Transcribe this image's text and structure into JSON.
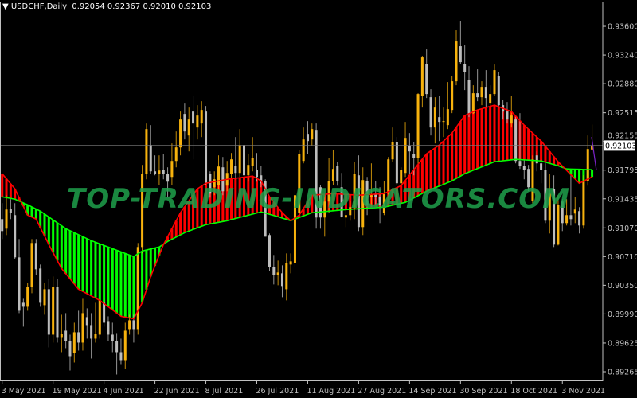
{
  "header": {
    "menu_icon": "triangle-down-icon",
    "symbol": "USDCHF,Daily",
    "open": "0.92054",
    "high": "0.92367",
    "low": "0.92010",
    "close": "0.92103"
  },
  "watermark": "TOP-TRADING-INDICATORS.COM",
  "current_price_label": "0.92103",
  "colors": {
    "background": "#000000",
    "bull": "#f7b20d",
    "bear": "#bdbdbd",
    "fast_line": "#ff0000",
    "slow_line": "#00ff00",
    "fill_up": "#ff0000",
    "fill_down": "#00ff00",
    "watermark": "#1fa04c",
    "axis": "#c0c0c0",
    "price_line": "#7f7f7f",
    "extra_line": "#7a22c8"
  },
  "chart_data": {
    "type": "candlestick",
    "symbol": "USDCHF",
    "timeframe": "Daily",
    "ylim": [
      0.89155,
      0.9391
    ],
    "grid": false,
    "y_ticks": [
      "0.93600",
      "0.93240",
      "0.92880",
      "0.92515",
      "0.92155",
      "0.91795",
      "0.91435",
      "0.91070",
      "0.90710",
      "0.90350",
      "0.89990",
      "0.89625",
      "0.89265"
    ],
    "x_tick_labels": [
      "3 May 2021",
      "19 May 2021",
      "4 Jun 2021",
      "22 Jun 2021",
      "8 Jul 2021",
      "26 Jul 2021",
      "11 Aug 2021",
      "27 Aug 2021",
      "14 Sep 2021",
      "30 Sep 2021",
      "18 Oct 2021",
      "3 Nov 2021"
    ],
    "candles_ohlc": [
      [
        0.9118,
        0.9138,
        0.9093,
        0.9103
      ],
      [
        0.9106,
        0.9148,
        0.9098,
        0.913
      ],
      [
        0.9131,
        0.9143,
        0.9118,
        0.9126
      ],
      [
        0.9123,
        0.9138,
        0.9068,
        0.907
      ],
      [
        0.907,
        0.9093,
        0.9,
        0.9003
      ],
      [
        0.9013,
        0.9018,
        0.8983,
        0.9008
      ],
      [
        0.9008,
        0.9038,
        0.9003,
        0.9033
      ],
      [
        0.9033,
        0.9093,
        0.9025,
        0.9088
      ],
      [
        0.9088,
        0.9093,
        0.9048,
        0.9055
      ],
      [
        0.9056,
        0.9061,
        0.9008,
        0.9013
      ],
      [
        0.901,
        0.9038,
        0.8998,
        0.903
      ],
      [
        0.903,
        0.9043,
        0.8957,
        0.8973
      ],
      [
        0.8973,
        0.9046,
        0.8963,
        0.9033
      ],
      [
        0.9033,
        0.9043,
        0.8963,
        0.897
      ],
      [
        0.897,
        0.8998,
        0.8951,
        0.8974
      ],
      [
        0.8978,
        0.9,
        0.8956,
        0.8965
      ],
      [
        0.8965,
        0.8973,
        0.8928,
        0.8946
      ],
      [
        0.895,
        0.8988,
        0.8938,
        0.8976
      ],
      [
        0.8976,
        0.9003,
        0.8953,
        0.8963
      ],
      [
        0.8963,
        0.9018,
        0.8953,
        0.9
      ],
      [
        0.8995,
        0.9006,
        0.8968,
        0.8985
      ],
      [
        0.8985,
        0.9,
        0.8943,
        0.8968
      ],
      [
        0.8968,
        0.9013,
        0.8963,
        0.8974
      ],
      [
        0.8973,
        0.9018,
        0.8968,
        0.9016
      ],
      [
        0.9013,
        0.9018,
        0.8983,
        0.8988
      ],
      [
        0.899,
        0.8996,
        0.8965,
        0.8973
      ],
      [
        0.8973,
        0.8988,
        0.8951,
        0.8965
      ],
      [
        0.8965,
        0.8975,
        0.8923,
        0.8951
      ],
      [
        0.8951,
        0.8968,
        0.8936,
        0.8941
      ],
      [
        0.8941,
        0.8988,
        0.893,
        0.8978
      ],
      [
        0.898,
        0.8998,
        0.8973,
        0.8991
      ],
      [
        0.8991,
        0.8998,
        0.8963,
        0.898
      ],
      [
        0.898,
        0.9088,
        0.8973,
        0.9083
      ],
      [
        0.9083,
        0.9186,
        0.9075,
        0.9175
      ],
      [
        0.9175,
        0.9238,
        0.9168,
        0.9231
      ],
      [
        0.9211,
        0.9236,
        0.9175,
        0.9178
      ],
      [
        0.9178,
        0.9198,
        0.9173,
        0.9175
      ],
      [
        0.9175,
        0.9198,
        0.9161,
        0.9179
      ],
      [
        0.918,
        0.92,
        0.9168,
        0.9175
      ],
      [
        0.9175,
        0.9183,
        0.9145,
        0.9165
      ],
      [
        0.9171,
        0.9213,
        0.9161,
        0.9191
      ],
      [
        0.9191,
        0.9228,
        0.9183,
        0.9208
      ],
      [
        0.9208,
        0.9253,
        0.9198,
        0.9243
      ],
      [
        0.925,
        0.9263,
        0.9218,
        0.9228
      ],
      [
        0.9223,
        0.9258,
        0.9203,
        0.9243
      ],
      [
        0.9253,
        0.9273,
        0.9193,
        0.9238
      ],
      [
        0.9233,
        0.9261,
        0.9218,
        0.9248
      ],
      [
        0.9238,
        0.9266,
        0.9221,
        0.9255
      ],
      [
        0.9253,
        0.926,
        0.9161,
        0.9163
      ],
      [
        0.9175,
        0.9178,
        0.9145,
        0.915
      ],
      [
        0.9158,
        0.9178,
        0.9148,
        0.9168
      ],
      [
        0.9161,
        0.9198,
        0.9153,
        0.9184
      ],
      [
        0.9183,
        0.9196,
        0.9148,
        0.9153
      ],
      [
        0.916,
        0.9191,
        0.9153,
        0.9176
      ],
      [
        0.9175,
        0.9201,
        0.9168,
        0.9193
      ],
      [
        0.9185,
        0.9221,
        0.9168,
        0.9176
      ],
      [
        0.9176,
        0.9231,
        0.9171,
        0.9211
      ],
      [
        0.9211,
        0.9229,
        0.9168,
        0.9173
      ],
      [
        0.9173,
        0.92,
        0.9165,
        0.9186
      ],
      [
        0.9185,
        0.9221,
        0.9178,
        0.9195
      ],
      [
        0.918,
        0.9201,
        0.9165,
        0.9171
      ],
      [
        0.9173,
        0.9185,
        0.9158,
        0.9163
      ],
      [
        0.9166,
        0.9168,
        0.9096,
        0.9096
      ],
      [
        0.9098,
        0.91,
        0.9053,
        0.9058
      ],
      [
        0.9058,
        0.9073,
        0.9036,
        0.9048
      ],
      [
        0.9048,
        0.9066,
        0.9035,
        0.9051
      ],
      [
        0.905,
        0.906,
        0.902,
        0.9034
      ],
      [
        0.903,
        0.9075,
        0.9016,
        0.9063
      ],
      [
        0.9061,
        0.9075,
        0.905,
        0.9065
      ],
      [
        0.9063,
        0.9155,
        0.9058,
        0.9148
      ],
      [
        0.9126,
        0.9205,
        0.9123,
        0.92
      ],
      [
        0.9191,
        0.9233,
        0.9188,
        0.9218
      ],
      [
        0.9225,
        0.9241,
        0.92,
        0.9216
      ],
      [
        0.9218,
        0.9238,
        0.921,
        0.9231
      ],
      [
        0.923,
        0.9238,
        0.9106,
        0.912
      ],
      [
        0.9158,
        0.9161,
        0.9106,
        0.912
      ],
      [
        0.912,
        0.915,
        0.9096,
        0.914
      ],
      [
        0.914,
        0.9195,
        0.9126,
        0.9166
      ],
      [
        0.9166,
        0.9205,
        0.9161,
        0.9181
      ],
      [
        0.9185,
        0.919,
        0.916,
        0.9166
      ],
      [
        0.9158,
        0.9176,
        0.912,
        0.9121
      ],
      [
        0.912,
        0.913,
        0.9108,
        0.9123
      ],
      [
        0.9123,
        0.9141,
        0.9116,
        0.9133
      ],
      [
        0.9133,
        0.919,
        0.9118,
        0.9175
      ],
      [
        0.9173,
        0.9198,
        0.9103,
        0.9108
      ],
      [
        0.9108,
        0.9183,
        0.9098,
        0.9167
      ],
      [
        0.9166,
        0.9171,
        0.9123,
        0.9136
      ],
      [
        0.9146,
        0.9188,
        0.9133,
        0.9148
      ],
      [
        0.915,
        0.9166,
        0.9136,
        0.9146
      ],
      [
        0.9146,
        0.9158,
        0.9113,
        0.9136
      ],
      [
        0.9126,
        0.9166,
        0.9123,
        0.915
      ],
      [
        0.915,
        0.9196,
        0.9145,
        0.9193
      ],
      [
        0.9193,
        0.9233,
        0.919,
        0.9215
      ],
      [
        0.9215,
        0.9221,
        0.9161,
        0.9163
      ],
      [
        0.9163,
        0.9183,
        0.916,
        0.918
      ],
      [
        0.9176,
        0.924,
        0.9171,
        0.922
      ],
      [
        0.921,
        0.9226,
        0.9173,
        0.9203
      ],
      [
        0.92,
        0.9215,
        0.9173,
        0.9195
      ],
      [
        0.9195,
        0.9276,
        0.9186,
        0.9275
      ],
      [
        0.9273,
        0.9323,
        0.9258,
        0.9321
      ],
      [
        0.9313,
        0.9331,
        0.927,
        0.9275
      ],
      [
        0.9271,
        0.9281,
        0.9223,
        0.9233
      ],
      [
        0.9233,
        0.9271,
        0.9213,
        0.9258
      ],
      [
        0.9246,
        0.9273,
        0.9216,
        0.924
      ],
      [
        0.924,
        0.9258,
        0.9221,
        0.9241
      ],
      [
        0.9236,
        0.929,
        0.9231,
        0.9256
      ],
      [
        0.9255,
        0.9298,
        0.9251,
        0.9291
      ],
      [
        0.9291,
        0.9355,
        0.9286,
        0.9341
      ],
      [
        0.9335,
        0.9366,
        0.9313,
        0.9315
      ],
      [
        0.9313,
        0.9336,
        0.928,
        0.9303
      ],
      [
        0.9293,
        0.931,
        0.9246,
        0.925
      ],
      [
        0.9251,
        0.9286,
        0.925,
        0.9276
      ],
      [
        0.9276,
        0.9306,
        0.9266,
        0.9271
      ],
      [
        0.9271,
        0.9291,
        0.9261,
        0.9284
      ],
      [
        0.9284,
        0.9305,
        0.9258,
        0.927
      ],
      [
        0.9263,
        0.9286,
        0.926,
        0.9275
      ],
      [
        0.9275,
        0.9312,
        0.9273,
        0.9305
      ],
      [
        0.9298,
        0.9303,
        0.9258,
        0.9261
      ],
      [
        0.9261,
        0.9268,
        0.9243,
        0.9253
      ],
      [
        0.9253,
        0.9265,
        0.9238,
        0.9243
      ],
      [
        0.9238,
        0.9273,
        0.9233,
        0.9248
      ],
      [
        0.9243,
        0.9248,
        0.9188,
        0.9191
      ],
      [
        0.9191,
        0.9251,
        0.9181,
        0.9185
      ],
      [
        0.9185,
        0.9193,
        0.9168,
        0.918
      ],
      [
        0.9181,
        0.9186,
        0.9153,
        0.9158
      ],
      [
        0.9141,
        0.9198,
        0.9138,
        0.9193
      ],
      [
        0.9198,
        0.9203,
        0.9178,
        0.9188
      ],
      [
        0.9188,
        0.9193,
        0.9163,
        0.918
      ],
      [
        0.918,
        0.9188,
        0.9113,
        0.9116
      ],
      [
        0.9116,
        0.9175,
        0.91,
        0.915
      ],
      [
        0.9156,
        0.9173,
        0.9083,
        0.9086
      ],
      [
        0.9086,
        0.9148,
        0.9085,
        0.9136
      ],
      [
        0.914,
        0.9143,
        0.9103,
        0.9113
      ],
      [
        0.9113,
        0.9143,
        0.911,
        0.9123
      ],
      [
        0.9123,
        0.9173,
        0.911,
        0.9118
      ],
      [
        0.9125,
        0.9146,
        0.9113,
        0.913
      ],
      [
        0.9128,
        0.9133,
        0.91,
        0.911
      ],
      [
        0.911,
        0.9173,
        0.9106,
        0.9166
      ],
      [
        0.9166,
        0.9223,
        0.916,
        0.9206
      ],
      [
        0.92054,
        0.92367,
        0.9201,
        0.92103
      ]
    ],
    "fast_line_points": [
      [
        0,
        0.9175
      ],
      [
        3,
        0.9156
      ],
      [
        6,
        0.9123
      ],
      [
        8,
        0.9118
      ],
      [
        11,
        0.9086
      ],
      [
        14,
        0.9056
      ],
      [
        18,
        0.903
      ],
      [
        23,
        0.9016
      ],
      [
        28,
        0.8996
      ],
      [
        31,
        0.8993
      ],
      [
        33,
        0.9013
      ],
      [
        35,
        0.9046
      ],
      [
        38,
        0.9086
      ],
      [
        42,
        0.9126
      ],
      [
        46,
        0.9156
      ],
      [
        48,
        0.9163
      ],
      [
        53,
        0.9168
      ],
      [
        56,
        0.917
      ],
      [
        59,
        0.9172
      ],
      [
        61,
        0.9166
      ],
      [
        63,
        0.9146
      ],
      [
        66,
        0.9126
      ],
      [
        68,
        0.9116
      ],
      [
        70,
        0.9123
      ],
      [
        73,
        0.9148
      ],
      [
        78,
        0.915
      ],
      [
        84,
        0.9148
      ],
      [
        90,
        0.915
      ],
      [
        94,
        0.916
      ],
      [
        100,
        0.92
      ],
      [
        103,
        0.9211
      ],
      [
        106,
        0.9226
      ],
      [
        109,
        0.9248
      ],
      [
        112,
        0.9255
      ],
      [
        116,
        0.9261
      ],
      [
        120,
        0.9253
      ],
      [
        123,
        0.9236
      ],
      [
        127,
        0.9216
      ],
      [
        131,
        0.919
      ],
      [
        136,
        0.9163
      ],
      [
        139,
        0.9171
      ]
    ],
    "slow_line_points": [
      [
        0,
        0.9146
      ],
      [
        3,
        0.9143
      ],
      [
        6,
        0.9136
      ],
      [
        9,
        0.9128
      ],
      [
        15,
        0.9106
      ],
      [
        21,
        0.9091
      ],
      [
        26,
        0.9081
      ],
      [
        31,
        0.9071
      ],
      [
        33,
        0.9078
      ],
      [
        37,
        0.9083
      ],
      [
        39,
        0.909
      ],
      [
        43,
        0.9101
      ],
      [
        48,
        0.9111
      ],
      [
        53,
        0.9116
      ],
      [
        61,
        0.9127
      ],
      [
        65,
        0.9121
      ],
      [
        68,
        0.9116
      ],
      [
        73,
        0.9126
      ],
      [
        81,
        0.913
      ],
      [
        90,
        0.9133
      ],
      [
        95,
        0.9139
      ],
      [
        100,
        0.9153
      ],
      [
        106,
        0.9166
      ],
      [
        109,
        0.9175
      ],
      [
        116,
        0.919
      ],
      [
        121,
        0.9193
      ],
      [
        127,
        0.9191
      ],
      [
        131,
        0.9185
      ],
      [
        133,
        0.9181
      ],
      [
        139,
        0.918
      ]
    ],
    "current_price": 0.92103
  }
}
